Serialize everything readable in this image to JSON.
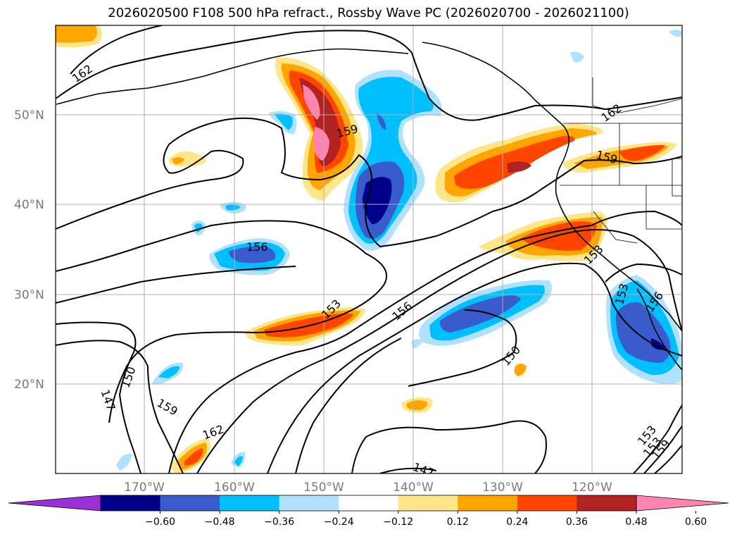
{
  "title": "2026020500 F108 500 hPa refract., Rossby Wave PC (2026020700 - 2026021100)",
  "lat_labels": [
    "50°N",
    "40°N",
    "30°N",
    "20°N"
  ],
  "lon_labels": [
    "170°W",
    "160°W",
    "150°W",
    "140°W",
    "130°W",
    "120°W"
  ],
  "contour_labels": [
    "162",
    "159",
    "156",
    "153",
    "156",
    "153",
    "150",
    "147",
    "159",
    "162",
    "150",
    "147",
    "153",
    "153",
    "156",
    "153",
    "159",
    "162",
    "159"
  ],
  "colorbar": {
    "ticks": [
      "−0.60",
      "−0.48",
      "−0.36",
      "−0.24",
      "−0.12",
      "0.12",
      "0.24",
      "0.36",
      "0.48",
      "0.60"
    ],
    "colors": [
      "#9b30d8",
      "#00008b",
      "#3a5bcc",
      "#00bfff",
      "#b0e2ff",
      "#ffffff",
      "#fde68a",
      "#ffa500",
      "#ff4500",
      "#b22222",
      "#ff85b0"
    ]
  }
}
